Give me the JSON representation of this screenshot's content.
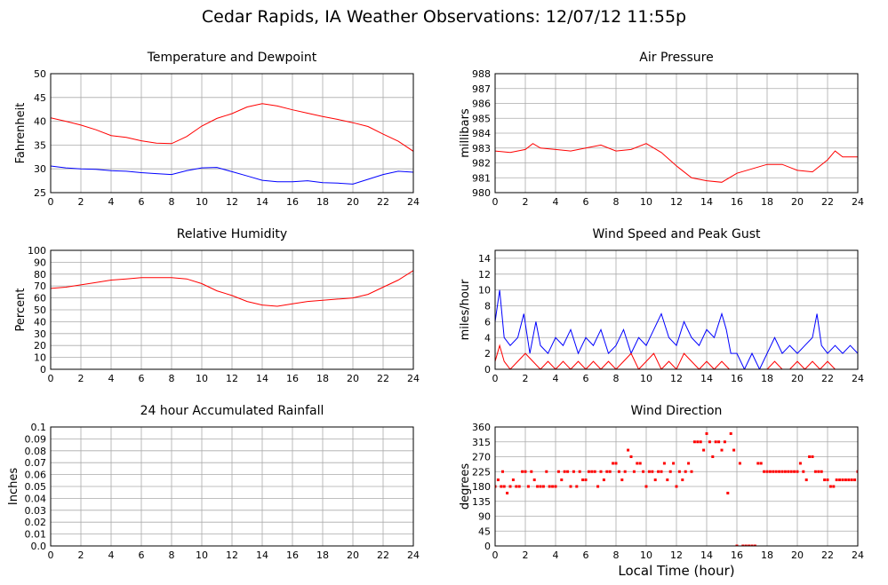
{
  "title": "Cedar Rapids, IA Weather Observations: 12/07/12 11:55p",
  "xlabel": "Local Time (hour)",
  "colors": {
    "primary_series": "#ff0000",
    "secondary_series": "#0000ff",
    "grid": "#aaaaaa",
    "frame": "#000000"
  },
  "chart_data": [
    {
      "type": "line",
      "title": "Temperature and Dewpoint",
      "ylabel": "Fahrenheit",
      "xlabel": "",
      "xlim": [
        0,
        24
      ],
      "ylim": [
        25,
        50
      ],
      "xticks": [
        0,
        2,
        4,
        6,
        8,
        10,
        12,
        14,
        16,
        18,
        20,
        22,
        24
      ],
      "yticks": [
        25,
        30,
        35,
        40,
        45,
        50
      ],
      "grid": true,
      "series": [
        {
          "color": "#ff0000",
          "x": [
            0,
            1,
            2,
            3,
            4,
            5,
            6,
            7,
            8,
            9,
            10,
            11,
            12,
            13,
            14,
            15,
            16,
            17,
            18,
            19,
            20,
            21,
            22,
            23,
            24
          ],
          "values": [
            40.7,
            40.0,
            39.2,
            38.2,
            37.0,
            36.6,
            35.9,
            35.4,
            35.3,
            36.8,
            39.0,
            40.6,
            41.6,
            43.0,
            43.7,
            43.2,
            42.4,
            41.7,
            41.0,
            40.4,
            39.7,
            38.9,
            37.3,
            35.8,
            33.7
          ]
        },
        {
          "color": "#0000ff",
          "x": [
            0,
            1,
            2,
            3,
            4,
            5,
            6,
            7,
            8,
            9,
            10,
            11,
            12,
            13,
            14,
            15,
            16,
            17,
            18,
            19,
            20,
            21,
            22,
            23,
            24
          ],
          "values": [
            30.6,
            30.2,
            30.0,
            29.9,
            29.6,
            29.5,
            29.2,
            29.0,
            28.8,
            29.6,
            30.2,
            30.3,
            29.4,
            28.5,
            27.6,
            27.3,
            27.3,
            27.5,
            27.1,
            27.0,
            26.8,
            27.8,
            28.8,
            29.5,
            29.3
          ]
        }
      ]
    },
    {
      "type": "line",
      "title": "Air Pressure",
      "ylabel": "millibars",
      "xlabel": "",
      "xlim": [
        0,
        24
      ],
      "ylim": [
        980,
        988
      ],
      "xticks": [
        0,
        2,
        4,
        6,
        8,
        10,
        12,
        14,
        16,
        18,
        20,
        22,
        24
      ],
      "yticks": [
        980,
        981,
        982,
        983,
        984,
        985,
        986,
        987,
        988
      ],
      "grid": true,
      "series": [
        {
          "color": "#ff0000",
          "x": [
            0,
            1,
            2,
            2.5,
            3,
            4,
            5,
            6,
            7,
            8,
            9,
            10,
            11,
            12,
            13,
            14,
            15,
            16,
            17,
            18,
            19,
            20,
            21,
            22,
            22.5,
            23,
            24
          ],
          "values": [
            982.8,
            982.7,
            982.9,
            983.3,
            983.0,
            982.9,
            982.8,
            983.0,
            983.2,
            982.8,
            982.9,
            983.3,
            982.7,
            981.8,
            981.0,
            980.8,
            980.7,
            981.3,
            981.6,
            981.9,
            981.9,
            981.5,
            981.4,
            982.2,
            982.8,
            982.4,
            982.4
          ]
        }
      ]
    },
    {
      "type": "line",
      "title": "Relative Humidity",
      "ylabel": "Percent",
      "xlabel": "",
      "xlim": [
        0,
        24
      ],
      "ylim": [
        0,
        100
      ],
      "xticks": [
        0,
        2,
        4,
        6,
        8,
        10,
        12,
        14,
        16,
        18,
        20,
        22,
        24
      ],
      "yticks": [
        0,
        10,
        20,
        30,
        40,
        50,
        60,
        70,
        80,
        90,
        100
      ],
      "grid": true,
      "series": [
        {
          "color": "#ff0000",
          "x": [
            0,
            1,
            2,
            3,
            4,
            5,
            6,
            7,
            8,
            9,
            10,
            11,
            12,
            13,
            14,
            15,
            16,
            17,
            18,
            19,
            20,
            21,
            22,
            23,
            24
          ],
          "values": [
            68,
            69,
            71,
            73,
            75,
            76,
            77,
            77,
            77,
            76,
            72,
            66,
            62,
            57,
            54,
            53,
            55,
            57,
            58,
            59,
            60,
            63,
            69,
            75,
            83
          ]
        }
      ]
    },
    {
      "type": "line",
      "title": "Wind Speed and Peak Gust",
      "ylabel": "miles/hour",
      "xlabel": "",
      "xlim": [
        0,
        24
      ],
      "ylim": [
        0,
        15
      ],
      "xticks": [
        0,
        2,
        4,
        6,
        8,
        10,
        12,
        14,
        16,
        18,
        20,
        22,
        24
      ],
      "yticks": [
        0,
        2,
        4,
        6,
        8,
        10,
        12,
        14
      ],
      "grid": true,
      "series": [
        {
          "color": "#0000ff",
          "x": [
            0,
            0.3,
            0.6,
            1,
            1.5,
            1.9,
            2.3,
            2.7,
            3,
            3.5,
            4,
            4.5,
            5,
            5.5,
            6,
            6.5,
            7,
            7.5,
            8,
            8.5,
            9,
            9.5,
            10,
            10.5,
            11,
            11.5,
            12,
            12.5,
            13,
            13.5,
            14,
            14.5,
            15,
            15.3,
            15.6,
            16,
            16.5,
            17,
            17.5,
            18,
            18.5,
            19,
            19.5,
            20,
            20.5,
            21,
            21.3,
            21.6,
            22,
            22.5,
            23,
            23.5,
            24
          ],
          "values": [
            6,
            10,
            4,
            3,
            4,
            7,
            2,
            6,
            3,
            2,
            4,
            3,
            5,
            2,
            4,
            3,
            5,
            2,
            3,
            5,
            2,
            4,
            3,
            5,
            7,
            4,
            3,
            6,
            4,
            3,
            5,
            4,
            7,
            5,
            2,
            2,
            0,
            2,
            0,
            2,
            4,
            2,
            3,
            2,
            3,
            4,
            7,
            3,
            2,
            3,
            2,
            3,
            2
          ]
        },
        {
          "color": "#ff0000",
          "x": [
            0,
            0.3,
            0.6,
            1,
            1.5,
            2,
            2.5,
            3,
            3.5,
            4,
            4.5,
            5,
            5.5,
            6,
            6.5,
            7,
            7.5,
            8,
            8.5,
            9,
            9.5,
            10,
            10.5,
            11,
            11.5,
            12,
            12.5,
            13,
            13.5,
            14,
            14.5,
            15,
            15.5,
            16,
            16.5,
            17,
            17.5,
            18,
            18.5,
            19,
            19.5,
            20,
            20.5,
            21,
            21.5,
            22,
            22.5,
            23,
            23.5,
            24
          ],
          "values": [
            1,
            3,
            1,
            0,
            1,
            2,
            1,
            0,
            1,
            0,
            1,
            0,
            1,
            0,
            1,
            0,
            1,
            0,
            1,
            2,
            0,
            1,
            2,
            0,
            1,
            0,
            2,
            1,
            0,
            1,
            0,
            1,
            0,
            0,
            0,
            0,
            0,
            0,
            1,
            0,
            0,
            1,
            0,
            1,
            0,
            1,
            0,
            0,
            0,
            0
          ]
        }
      ]
    },
    {
      "type": "line",
      "title": "24 hour Accumulated Rainfall",
      "ylabel": "Inches",
      "xlabel": "",
      "xlim": [
        0,
        24
      ],
      "ylim": [
        0,
        0.1
      ],
      "xticks": [
        0,
        2,
        4,
        6,
        8,
        10,
        12,
        14,
        16,
        18,
        20,
        22,
        24
      ],
      "yticks": [
        "0.0",
        "0.01",
        "0.02",
        "0.03",
        "0.04",
        "0.05",
        "0.06",
        "0.07",
        "0.08",
        "0.09",
        "0.1"
      ],
      "grid": true,
      "series": [
        {
          "color": "#ff0000",
          "x": [
            0,
            24
          ],
          "values": [
            0,
            0
          ]
        }
      ]
    },
    {
      "type": "scatter",
      "title": "Wind Direction",
      "ylabel": "degrees",
      "xlabel": "Local Time (hour)",
      "xlim": [
        0,
        24
      ],
      "ylim": [
        0,
        360
      ],
      "xticks": [
        0,
        2,
        4,
        6,
        8,
        10,
        12,
        14,
        16,
        18,
        20,
        22,
        24
      ],
      "yticks": [
        0,
        45,
        90,
        135,
        180,
        225,
        270,
        315,
        360
      ],
      "grid": true,
      "series": [
        {
          "color": "#ff0000",
          "x": [
            0,
            0.2,
            0.4,
            0.5,
            0.6,
            0.8,
            1.0,
            1.2,
            1.4,
            1.6,
            1.8,
            2.0,
            2.2,
            2.4,
            2.6,
            2.8,
            3.0,
            3.2,
            3.4,
            3.6,
            3.8,
            4.0,
            4.2,
            4.4,
            4.6,
            4.8,
            5.0,
            5.2,
            5.4,
            5.6,
            5.8,
            6.0,
            6.2,
            6.4,
            6.6,
            6.8,
            7.0,
            7.2,
            7.4,
            7.6,
            7.8,
            8.0,
            8.2,
            8.4,
            8.6,
            8.8,
            9.0,
            9.2,
            9.4,
            9.6,
            9.8,
            10.0,
            10.2,
            10.4,
            10.6,
            10.8,
            11.0,
            11.2,
            11.4,
            11.6,
            11.8,
            12.0,
            12.2,
            12.4,
            12.6,
            12.8,
            13.0,
            13.2,
            13.4,
            13.6,
            13.8,
            14.0,
            14.2,
            14.4,
            14.6,
            14.8,
            15.0,
            15.2,
            15.4,
            15.6,
            15.8,
            16.0,
            16.2,
            16.4,
            16.6,
            16.8,
            17.0,
            17.2,
            17.4,
            17.6,
            17.8,
            18.0,
            18.2,
            18.4,
            18.6,
            18.8,
            19.0,
            19.2,
            19.4,
            19.6,
            19.8,
            20.0,
            20.2,
            20.4,
            20.6,
            20.8,
            21.0,
            21.2,
            21.4,
            21.6,
            21.8,
            22.0,
            22.2,
            22.4,
            22.6,
            22.8,
            23.0,
            23.2,
            23.4,
            23.6,
            23.8,
            24.0
          ],
          "values": [
            180,
            200,
            180,
            225,
            180,
            160,
            180,
            200,
            180,
            180,
            225,
            225,
            180,
            225,
            200,
            180,
            180,
            180,
            225,
            180,
            180,
            180,
            225,
            200,
            225,
            225,
            180,
            225,
            180,
            225,
            200,
            200,
            225,
            225,
            225,
            180,
            225,
            200,
            225,
            225,
            250,
            250,
            225,
            200,
            225,
            290,
            270,
            225,
            250,
            250,
            225,
            180,
            225,
            225,
            200,
            225,
            225,
            250,
            200,
            225,
            250,
            180,
            225,
            200,
            225,
            250,
            225,
            315,
            315,
            315,
            290,
            340,
            315,
            270,
            315,
            315,
            290,
            315,
            160,
            340,
            290,
            0,
            250,
            0,
            0,
            0,
            0,
            0,
            250,
            250,
            225,
            225,
            225,
            225,
            225,
            225,
            225,
            225,
            225,
            225,
            225,
            225,
            250,
            225,
            200,
            270,
            270,
            225,
            225,
            225,
            200,
            200,
            180,
            180,
            200,
            200,
            200,
            200,
            200,
            200,
            200,
            225
          ]
        }
      ]
    }
  ]
}
